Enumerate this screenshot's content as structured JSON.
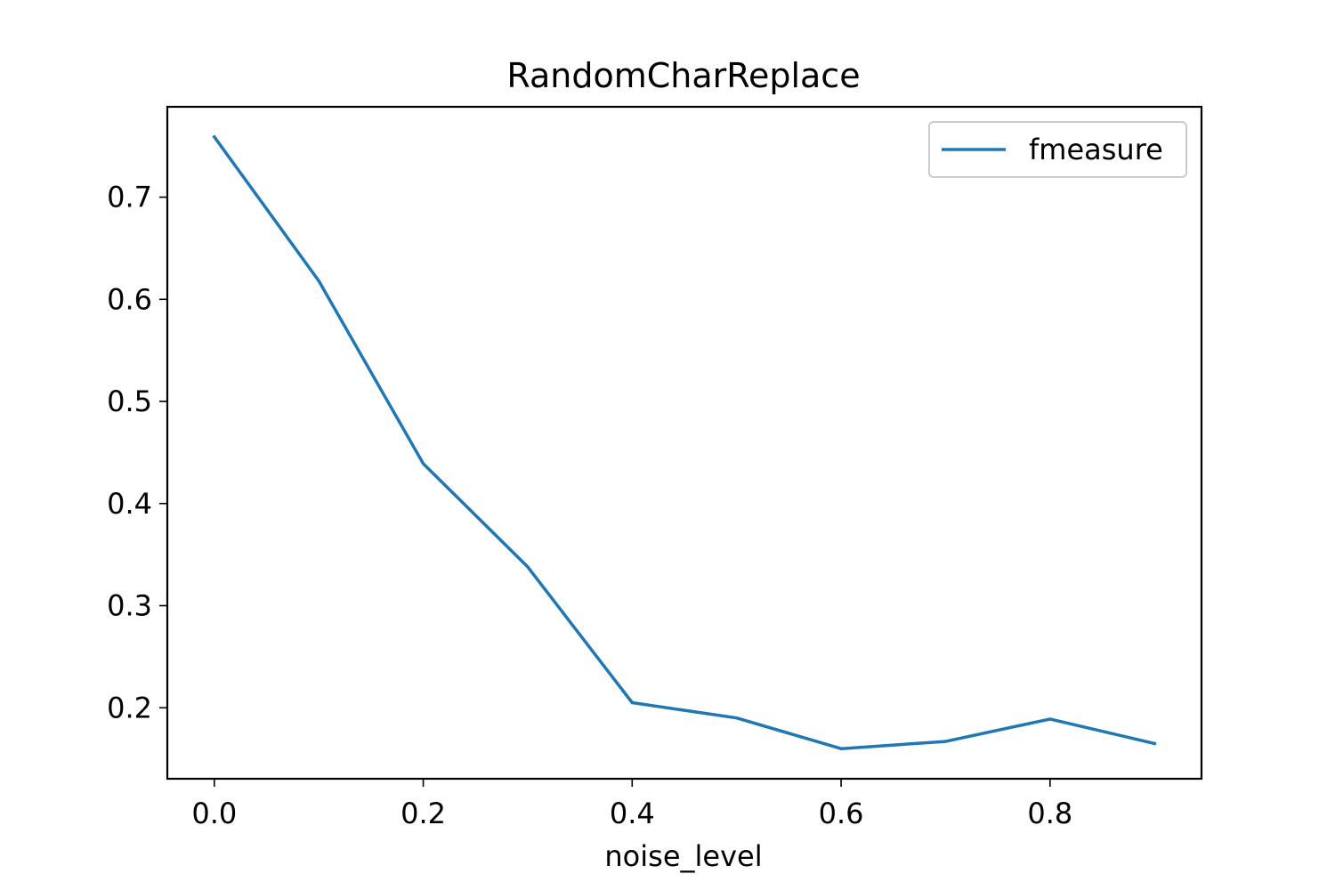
{
  "chart_data": {
    "type": "line",
    "title": "RandomCharReplace",
    "xlabel": "noise_level",
    "ylabel": "",
    "x": [
      0.0,
      0.1,
      0.2,
      0.3,
      0.4,
      0.5,
      0.6,
      0.7,
      0.8,
      0.9
    ],
    "series": [
      {
        "name": "fmeasure",
        "color": "#1f77b4",
        "values": [
          0.759,
          0.618,
          0.439,
          0.338,
          0.205,
          0.19,
          0.16,
          0.167,
          0.189,
          0.165
        ]
      }
    ],
    "xlim": [
      -0.045,
      0.945
    ],
    "ylim": [
      0.1305,
      0.7885
    ],
    "xticks": [
      0.0,
      0.2,
      0.4,
      0.6,
      0.8
    ],
    "xtick_labels": [
      "0.0",
      "0.2",
      "0.4",
      "0.6",
      "0.8"
    ],
    "yticks": [
      0.2,
      0.3,
      0.4,
      0.5,
      0.6,
      0.7
    ],
    "ytick_labels": [
      "0.2",
      "0.3",
      "0.4",
      "0.5",
      "0.6",
      "0.7"
    ],
    "grid": false,
    "legend_position": "upper right"
  }
}
